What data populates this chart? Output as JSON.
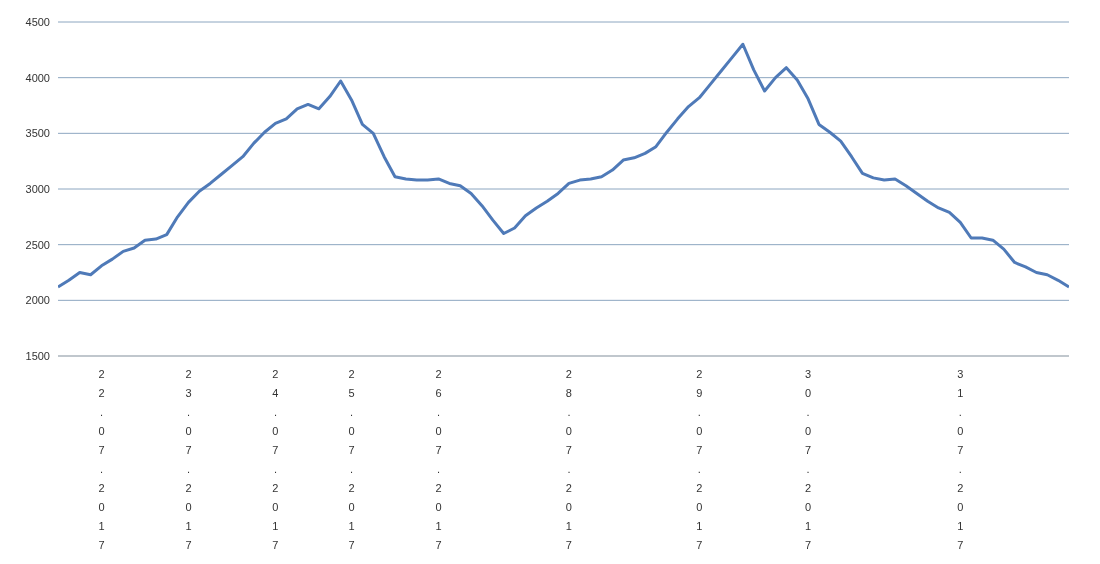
{
  "chart_data": {
    "type": "line",
    "categories": [
      null,
      null,
      null,
      null,
      "22.07.2017",
      null,
      null,
      null,
      null,
      null,
      null,
      null,
      "23.07.2017",
      null,
      null,
      null,
      null,
      null,
      null,
      null,
      "24.07.2017",
      null,
      null,
      null,
      null,
      null,
      null,
      "25.07.2017",
      null,
      null,
      null,
      null,
      null,
      null,
      null,
      "26.07.2017",
      null,
      null,
      null,
      null,
      null,
      null,
      null,
      null,
      null,
      null,
      null,
      "28.07.2017",
      null,
      null,
      null,
      null,
      null,
      null,
      null,
      null,
      null,
      null,
      null,
      "29.07.2017",
      null,
      null,
      null,
      null,
      null,
      null,
      null,
      null,
      null,
      "30.07.2017",
      null,
      null,
      null,
      null,
      null,
      null,
      null,
      null,
      null,
      null,
      null,
      null,
      null,
      "31.07.2017",
      null,
      null,
      null,
      null,
      null,
      null,
      null,
      null,
      null,
      null
    ],
    "series": [
      {
        "color": "#4f7ab8",
        "values": [
          2120,
          2180,
          2250,
          2230,
          2310,
          2370,
          2440,
          2470,
          2540,
          2550,
          2590,
          2750,
          2880,
          2980,
          3050,
          3130,
          3210,
          3290,
          3410,
          3510,
          3590,
          3630,
          3720,
          3760,
          3720,
          3830,
          3970,
          3800,
          3580,
          3500,
          3290,
          3110,
          3090,
          3080,
          3080,
          3090,
          3050,
          3030,
          2960,
          2850,
          2720,
          2600,
          2650,
          2760,
          2830,
          2890,
          2960,
          3050,
          3080,
          3090,
          3110,
          3170,
          3260,
          3280,
          3320,
          3380,
          3510,
          3630,
          3740,
          3820,
          3940,
          4060,
          4180,
          4300,
          4070,
          3880,
          4000,
          4090,
          3980,
          3810,
          3580,
          3510,
          3430,
          3290,
          3140,
          3100,
          3080,
          3090,
          3030,
          2960,
          2890,
          2830,
          2790,
          2700,
          2560,
          2560,
          2540,
          2460,
          2340,
          2300,
          2250,
          2230,
          2180,
          2120
        ]
      }
    ],
    "ylim": [
      1500,
      4500
    ],
    "yticks": [
      1500,
      2000,
      2500,
      3000,
      3500,
      4000,
      4500
    ],
    "grid": "y",
    "legend": false,
    "marker": "none",
    "line_style": "solid"
  }
}
